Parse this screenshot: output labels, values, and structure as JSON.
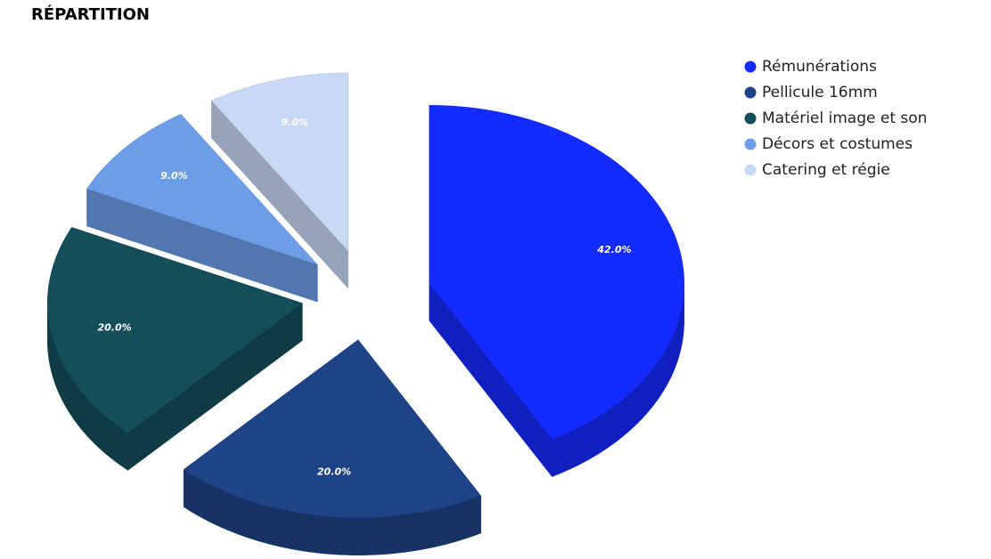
{
  "chart_data": {
    "type": "pie",
    "title": "RÉPARTITION",
    "categories": [
      "Rémunérations",
      "Pellicule 16mm",
      "Matériel image et son",
      "Décors et costumes",
      "Catering et régie"
    ],
    "values": [
      42,
      20,
      20,
      9,
      9
    ],
    "value_labels": [
      "42.0%",
      "20.0%",
      "20.0%",
      "9.0%",
      "9.0%"
    ],
    "colors": [
      "#142bff",
      "#1e4386",
      "#134e5a",
      "#6c9ee8",
      "#c8d9f5"
    ],
    "legend": "top-right",
    "exploded": true,
    "three_d": true
  }
}
